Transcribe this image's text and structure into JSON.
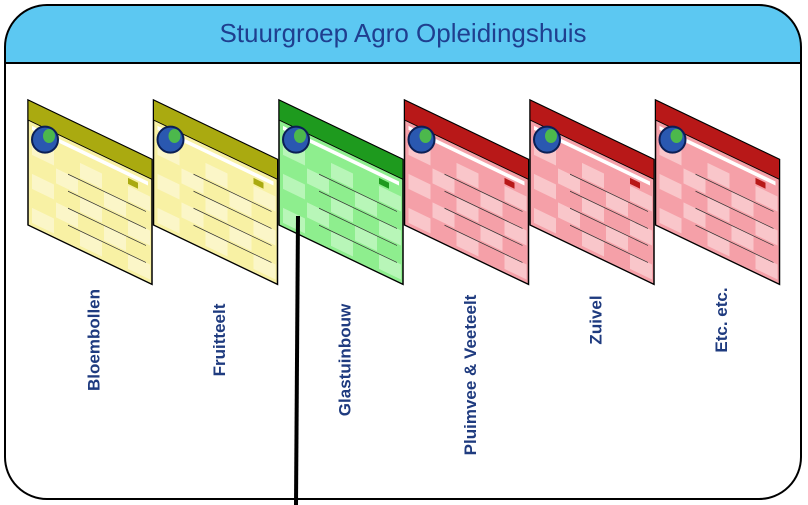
{
  "title": "Stuurgroep Agro Opleidingshuis",
  "items": [
    {
      "label": "Bloembollen"
    },
    {
      "label": "Fruitteelt"
    },
    {
      "label": "Glastuinbouw"
    },
    {
      "label": "Pluimvee & Veeteelt"
    },
    {
      "label": "Zuivel"
    },
    {
      "label": "Etc. etc."
    }
  ]
}
